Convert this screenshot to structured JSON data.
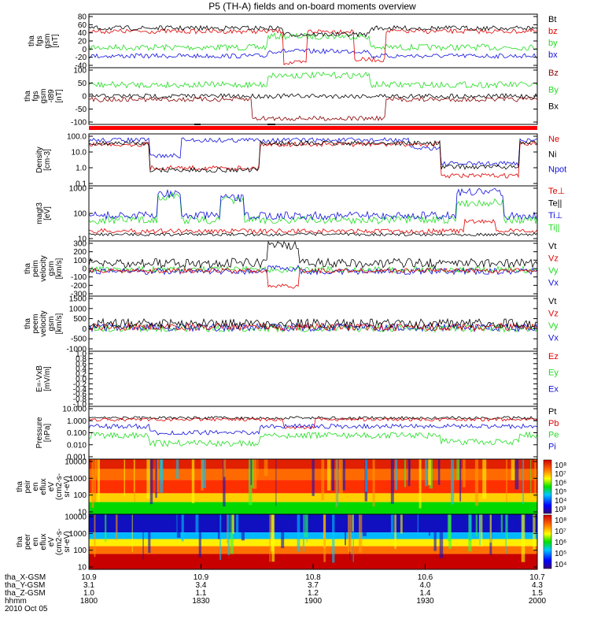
{
  "title": "P5 (TH-A) fields and on-board moments overview",
  "colors": {
    "black": "#000000",
    "red": "#e00000",
    "green": "#22dd22",
    "blue": "#1010dd",
    "dkred": "#8b0000"
  },
  "panels": [
    {
      "id": "fgs",
      "ylabel": [
        "tha",
        "fgs",
        "gsm",
        "[nT]"
      ],
      "ylim": [
        -40,
        85
      ],
      "ticks": [
        80,
        60,
        40,
        20,
        0,
        -20,
        -40
      ],
      "legend": [
        {
          "text": "Bt",
          "color": "black"
        },
        {
          "text": "bz",
          "color": "red"
        },
        {
          "text": "by",
          "color": "green"
        },
        {
          "text": "bx",
          "color": "blue"
        }
      ]
    },
    {
      "id": "fgs2",
      "ylabel": [
        "tha",
        "fgs",
        "gsm",
        "-t89",
        "[nT]"
      ],
      "ylim": [
        -130,
        100
      ],
      "ticks": [
        100,
        50,
        0,
        -50,
        -100
      ],
      "legend": [
        {
          "text": "Bz",
          "color": "dkred"
        },
        {
          "text": "By",
          "color": "green"
        },
        {
          "text": "Bx",
          "color": "black"
        }
      ]
    },
    {
      "id": "dens",
      "ylabel": [
        "Density",
        "[cm-3]"
      ],
      "ylim": [
        0.1,
        100
      ],
      "log": true,
      "ticks": [
        "100.0",
        "10.0",
        "1.0",
        "0.1"
      ],
      "legend": [
        {
          "text": "Ne",
          "color": "red"
        },
        {
          "text": "Ni",
          "color": "black"
        },
        {
          "text": "Npot",
          "color": "blue"
        }
      ]
    },
    {
      "id": "temp",
      "ylabel": [
        "magt3",
        "[eV]"
      ],
      "ylim": [
        10,
        5000
      ],
      "log": true,
      "ticks": [
        "1000",
        "100",
        "10"
      ],
      "legend": [
        {
          "text": "Te⊥",
          "color": "red"
        },
        {
          "text": "Te||",
          "color": "black"
        },
        {
          "text": "Ti⊥",
          "color": "blue"
        },
        {
          "text": "Ti||",
          "color": "green"
        }
      ]
    },
    {
      "id": "peim",
      "ylabel": [
        "tha",
        "peim",
        "velocity",
        "gsm",
        "[km/s]"
      ],
      "ylim": [
        -300,
        300
      ],
      "ticks": [
        300,
        200,
        100,
        0,
        -100,
        -200,
        -300
      ],
      "legend": [
        {
          "text": "Vt",
          "color": "black"
        },
        {
          "text": "Vz",
          "color": "red"
        },
        {
          "text": "Vy",
          "color": "green"
        },
        {
          "text": "Vx",
          "color": "blue"
        }
      ]
    },
    {
      "id": "peem",
      "ylabel": [
        "tha",
        "peem",
        "velocity",
        "gsm",
        "[km/s]"
      ],
      "ylim": [
        -1000,
        1500
      ],
      "ticks": [
        1500,
        1000,
        500,
        0,
        -500,
        -1000
      ],
      "legend": [
        {
          "text": "Vt",
          "color": "black"
        },
        {
          "text": "Vz",
          "color": "red"
        },
        {
          "text": "Vy",
          "color": "green"
        },
        {
          "text": "Vx",
          "color": "blue"
        }
      ]
    },
    {
      "id": "efield",
      "ylabel": [
        "E=-VxB",
        "[mV/m]"
      ],
      "ylim": [
        -1,
        1
      ],
      "ticks": [
        "1.0",
        "0.8",
        "0.6",
        "0.4",
        "0.2",
        "0.0",
        "-0.2",
        "-0.4",
        "-0.6",
        "-0.8",
        "-1.0"
      ],
      "legend": [
        {
          "text": "Ez",
          "color": "red"
        },
        {
          "text": "Ey",
          "color": "green"
        },
        {
          "text": "Ex",
          "color": "blue"
        }
      ]
    },
    {
      "id": "press",
      "ylabel": [
        "Pressure",
        "[nPa]"
      ],
      "ylim": [
        0.001,
        10
      ],
      "log": true,
      "ticks": [
        "10.000",
        "1.000",
        "0.100",
        "0.010",
        "0.001"
      ],
      "legend": [
        {
          "text": "Pt",
          "color": "black"
        },
        {
          "text": "Pb",
          "color": "red"
        },
        {
          "text": "Pe",
          "color": "green"
        },
        {
          "text": "Pi",
          "color": "blue"
        }
      ]
    },
    {
      "id": "peir",
      "ylabel": [
        "tha",
        "peir",
        "en",
        "eflux",
        "eV",
        "(cm2-s-",
        "sr-eV)"
      ],
      "ylim": [
        10,
        20000
      ],
      "log": true,
      "ticks": [
        "10000",
        "1000",
        "100",
        "10"
      ],
      "colorbar": [
        "10⁸",
        "10⁷",
        "10⁶",
        "10⁵",
        "10⁴",
        "10³"
      ]
    },
    {
      "id": "peer",
      "ylabel": [
        "tha",
        "peer",
        "en",
        "eflux",
        "eV",
        "(cm2-s-",
        "sr-eV)"
      ],
      "ylim": [
        10,
        20000
      ],
      "log": true,
      "ticks": [
        "10000",
        "1000",
        "100",
        "10"
      ],
      "colorbar": [
        "10⁸",
        "10⁷",
        "10⁶",
        "10⁵",
        "10⁴"
      ]
    }
  ],
  "chart_data": {
    "type": "line",
    "title": "P5 (TH-A) fields and on-board moments overview",
    "x_range": [
      "1800",
      "2000"
    ],
    "x_ticks_hhmm": [
      "1800",
      "1830",
      "1900",
      "1930",
      "2000"
    ],
    "x_ticks_X_GSM": [
      "10.9",
      "10.9",
      "10.8",
      "10.6",
      "10.7"
    ],
    "x_ticks_Y_GSM": [
      "3.1",
      "3.4",
      "3.7",
      "4.0",
      "4.3"
    ],
    "x_ticks_Z_GSM": [
      "1.0",
      "1.1",
      "1.2",
      "1.4",
      "1.5"
    ],
    "series_approx": [
      {
        "panel": "fgs",
        "name": "Bt",
        "level": 50
      },
      {
        "panel": "fgs",
        "name": "bz",
        "level": 45
      },
      {
        "panel": "fgs",
        "name": "by",
        "level": 0
      },
      {
        "panel": "fgs",
        "name": "bx",
        "level": -15
      },
      {
        "panel": "fgs2",
        "name": "By",
        "level": 25
      },
      {
        "panel": "fgs2",
        "name": "Bx",
        "level": 5
      },
      {
        "panel": "fgs2",
        "name": "Bz",
        "level": -10
      },
      {
        "panel": "dens",
        "name": "Npot",
        "level": 20
      },
      {
        "panel": "dens",
        "name": "Ne",
        "level": 10
      },
      {
        "panel": "temp",
        "name": "Ti||",
        "level": 300
      },
      {
        "panel": "temp",
        "name": "Te||",
        "level": 30
      },
      {
        "panel": "press",
        "name": "Pt",
        "level": 1.2
      },
      {
        "panel": "press",
        "name": "Pi",
        "level": 0.3
      },
      {
        "panel": "press",
        "name": "Pe",
        "level": 0.05
      }
    ]
  },
  "footer": {
    "rows": [
      {
        "label": "tha_X-GSM"
      },
      {
        "label": "tha_Y-GSM"
      },
      {
        "label": "tha_Z-GSM"
      },
      {
        "label": "hhmm"
      }
    ],
    "date": "2010 Oct 05"
  }
}
